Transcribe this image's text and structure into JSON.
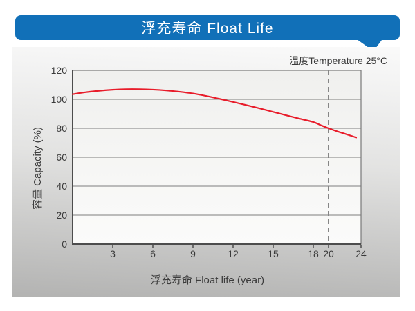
{
  "header": {
    "title": "浮充寿命 Float Life"
  },
  "colors": {
    "banner_blue": "#1170b8",
    "curve_red": "#e81c2a",
    "grid_gray": "#7d7d7d",
    "axis_dark": "#4d4d4d",
    "dash_gray": "#868686",
    "text_dark": "#3a3a3a"
  },
  "chart_data": {
    "type": "line",
    "title": "浮充寿命 Float Life",
    "xlabel": "浮充寿命 Float life (year)",
    "ylabel": "容量 Capacity (%)",
    "annotation": "温度Temperature 25°C",
    "xlim": [
      0,
      24
    ],
    "ylim": [
      0,
      120
    ],
    "x_ticks": [
      3,
      6,
      9,
      12,
      15,
      18,
      20,
      24
    ],
    "y_ticks": [
      120,
      100,
      80,
      60,
      40,
      20,
      0
    ],
    "grid": "horizontal-only",
    "legend": "none",
    "reference_line": {
      "axis": "x",
      "value": 20,
      "style": "dashed"
    },
    "series": [
      {
        "name": "容量 Capacity (%)",
        "color": "#e81c2a",
        "x": [
          0,
          1,
          2,
          3,
          4,
          5,
          6,
          7,
          8,
          9,
          10,
          11,
          12,
          13,
          14,
          15,
          16,
          17,
          18,
          19,
          20,
          21,
          22,
          23,
          23.4
        ],
        "y": [
          103.5,
          104.9,
          105.9,
          106.6,
          107.0,
          107.0,
          106.7,
          106.1,
          105.2,
          104.0,
          102.3,
          100.3,
          98.2,
          96.0,
          93.7,
          91.3,
          88.9,
          86.6,
          84.3,
          82.1,
          80.0,
          78.0,
          76.2,
          74.4,
          73.6
        ]
      }
    ]
  }
}
